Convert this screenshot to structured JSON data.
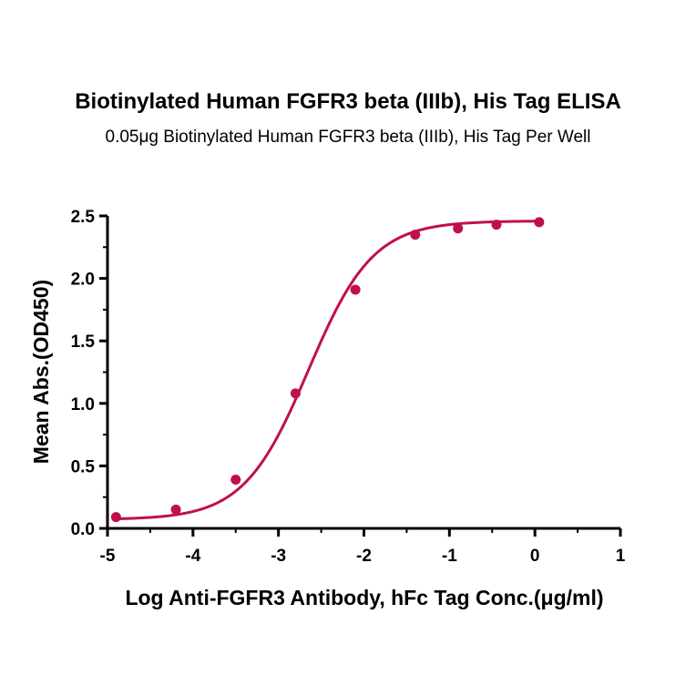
{
  "chart_data": {
    "type": "scatter",
    "title": "Biotinylated Human FGFR3 beta (IIIb), His Tag ELISA",
    "subtitle": "0.05μg Biotinylated Human FGFR3 beta (IIIb), His Tag Per Well",
    "xlabel": "Log  Anti-FGFR3 Antibody, hFc Tag Conc.(μg/ml)",
    "ylabel": "Mean Abs.(OD450)",
    "xlim": [
      -5,
      1
    ],
    "ylim": [
      0,
      2.5
    ],
    "xticks": [
      "-5",
      "-4",
      "-3",
      "-2",
      "-1",
      "0",
      "1"
    ],
    "yticks": [
      "0.0",
      "0.5",
      "1.0",
      "1.5",
      "2.0",
      "2.5"
    ],
    "grid": false,
    "color": "#c0104a",
    "series": [
      {
        "x": [
          -4.9,
          -4.2,
          -3.5,
          -2.8,
          -2.1,
          -1.4,
          -0.9,
          -0.45,
          0.05
        ],
        "y": [
          0.09,
          0.15,
          0.39,
          1.08,
          1.91,
          2.35,
          2.4,
          2.43,
          2.45
        ]
      }
    ],
    "fit_curve": {
      "model": "4PL",
      "bottom": 0.07,
      "top": 2.46,
      "log_ec50": -2.65,
      "hill_slope": 1.15
    }
  }
}
